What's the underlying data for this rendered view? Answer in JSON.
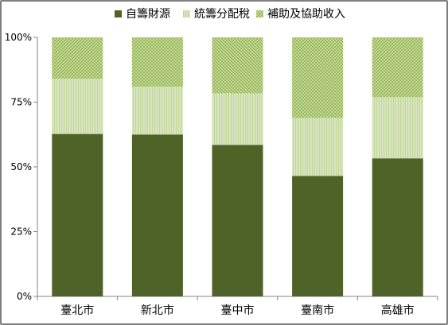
{
  "chart_data": {
    "type": "bar",
    "stacked": true,
    "percent_stacked": true,
    "categories": [
      "臺北市",
      "新北市",
      "臺中市",
      "臺南市",
      "高雄市"
    ],
    "series": [
      {
        "name": "自籌財源",
        "values": [
          62.7,
          62.5,
          58.5,
          46.5,
          53.3
        ],
        "color": "#4f6228",
        "pattern": "solid"
      },
      {
        "name": "統籌分配稅",
        "values": [
          21.3,
          18.5,
          19.9,
          22.4,
          23.6
        ],
        "color": "#d7e4bd",
        "pattern": "vertical-lines"
      },
      {
        "name": "補助及協助收入",
        "values": [
          16.0,
          19.0,
          21.6,
          31.1,
          23.1
        ],
        "color": "#9bbb59",
        "pattern": "dots"
      }
    ],
    "y_ticks": [
      "0%",
      "25%",
      "50%",
      "75%",
      "100%"
    ],
    "ylim": [
      0,
      100
    ],
    "grid": false,
    "legend_position": "top"
  }
}
